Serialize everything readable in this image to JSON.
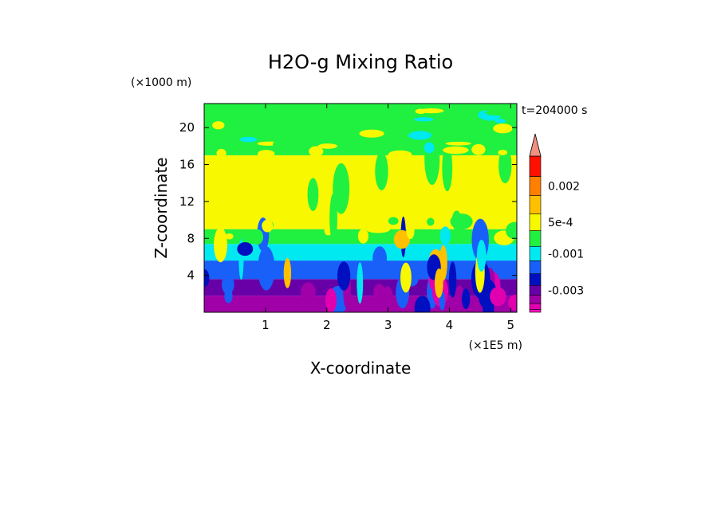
{
  "chart_data": {
    "type": "heatmap",
    "title": "H2O-g Mixing Ratio",
    "xlabel": "X-coordinate",
    "ylabel": "Z-coordinate",
    "x_units": "(×1E5 m)",
    "y_units": "(×1000 m)",
    "time_label": "t=204000 s",
    "xlim": [
      0,
      5.1
    ],
    "ylim": [
      0,
      22.6
    ],
    "x_ticks": [
      1,
      2,
      3,
      4,
      5
    ],
    "y_ticks": [
      4,
      8,
      12,
      16,
      20
    ],
    "x_tick_labels": [
      "1",
      "2",
      "3",
      "4",
      "5"
    ],
    "y_tick_labels": [
      "4",
      "8",
      "12",
      "16",
      "20"
    ],
    "grid": false,
    "colorbar": {
      "levels": 12,
      "colors": [
        "#ff10c0",
        "#e000b0",
        "#a000a8",
        "#6800a8",
        "#0010c0",
        "#1860f8",
        "#00e8f0",
        "#20f040",
        "#f8f800",
        "#ffc000",
        "#ff8000",
        "#ff1000",
        "#f09080"
      ],
      "tick_labels": [
        {
          "label": "0.002",
          "level": 10.5
        },
        {
          "label": "5e-4",
          "level": 8.5
        },
        {
          "label": "-0.001",
          "level": 6.5
        },
        {
          "label": "-0.003",
          "level": 3.5
        }
      ]
    },
    "field_bands": [
      {
        "z_from": 0.0,
        "z_to": 1.8,
        "level": 2
      },
      {
        "z_from": 1.8,
        "z_to": 3.6,
        "level": 3
      },
      {
        "z_from": 3.6,
        "z_to": 5.6,
        "level": 5
      },
      {
        "z_from": 5.6,
        "z_to": 7.4,
        "level": 6
      },
      {
        "z_from": 7.4,
        "z_to": 9.0,
        "level": 7
      },
      {
        "z_from": 9.0,
        "z_to": 17.0,
        "level": 8
      },
      {
        "z_from": 17.0,
        "z_to": 22.6,
        "level": 7
      }
    ]
  }
}
